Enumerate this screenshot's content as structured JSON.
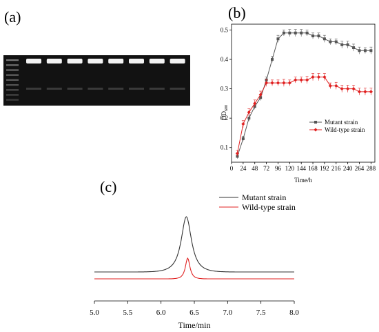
{
  "labels": {
    "a": "(a)",
    "b": "(b)",
    "c": "(c)"
  },
  "colors": {
    "mutant": "#555555",
    "wild": "#e02020",
    "gel_bg": "#121212",
    "band": "#f2f2f2"
  },
  "gel": {
    "lanes": 8,
    "ladder_bands": 9
  },
  "chart_data": [
    {
      "panel": "b",
      "type": "line",
      "ylabel_main": "OD",
      "ylabel_sub": "600",
      "xlabel": "Time/h",
      "xlim": [
        0,
        296
      ],
      "ylim": [
        0.05,
        0.52
      ],
      "xticks": [
        0,
        24,
        48,
        72,
        96,
        120,
        144,
        168,
        192,
        216,
        240,
        264,
        288
      ],
      "yticks": [
        0.1,
        0.2,
        0.3,
        0.4,
        0.5
      ],
      "legend_position": "bottom-right",
      "series": [
        {
          "name": "Mutant strain",
          "color": "#555555",
          "marker": "square",
          "x": [
            12,
            24,
            36,
            48,
            60,
            72,
            84,
            96,
            108,
            120,
            132,
            144,
            156,
            168,
            180,
            192,
            204,
            216,
            228,
            240,
            252,
            264,
            276,
            288
          ],
          "y": [
            0.07,
            0.13,
            0.2,
            0.24,
            0.27,
            0.33,
            0.4,
            0.47,
            0.49,
            0.49,
            0.49,
            0.49,
            0.49,
            0.48,
            0.48,
            0.47,
            0.46,
            0.46,
            0.45,
            0.45,
            0.44,
            0.43,
            0.43,
            0.43
          ],
          "err": [
            0.008,
            0.008,
            0.01,
            0.01,
            0.01,
            0.01,
            0.01,
            0.012,
            0.01,
            0.012,
            0.012,
            0.012,
            0.01,
            0.01,
            0.01,
            0.012,
            0.01,
            0.01,
            0.012,
            0.012,
            0.012,
            0.012,
            0.01,
            0.012
          ]
        },
        {
          "name": "Wild-type strain",
          "color": "#e02020",
          "marker": "diamond",
          "x": [
            12,
            24,
            36,
            48,
            60,
            72,
            84,
            96,
            108,
            120,
            132,
            144,
            156,
            168,
            180,
            192,
            204,
            216,
            228,
            240,
            252,
            264,
            276,
            288
          ],
          "y": [
            0.08,
            0.18,
            0.22,
            0.25,
            0.28,
            0.32,
            0.32,
            0.32,
            0.32,
            0.32,
            0.33,
            0.33,
            0.33,
            0.34,
            0.34,
            0.34,
            0.31,
            0.31,
            0.3,
            0.3,
            0.3,
            0.29,
            0.29,
            0.29
          ],
          "err": [
            0.01,
            0.012,
            0.012,
            0.012,
            0.012,
            0.012,
            0.01,
            0.01,
            0.012,
            0.01,
            0.01,
            0.01,
            0.012,
            0.012,
            0.012,
            0.012,
            0.01,
            0.012,
            0.012,
            0.012,
            0.012,
            0.012,
            0.012,
            0.012
          ]
        }
      ]
    },
    {
      "panel": "c",
      "type": "line",
      "xlabel": "Time/min",
      "xlim": [
        5.0,
        8.0
      ],
      "xticks": [
        "5.0",
        "5.5",
        "6.0",
        "6.5",
        "7.0",
        "7.5",
        "8.0"
      ],
      "yaxis_shown": false,
      "legend_position": "top-right",
      "series": [
        {
          "name": "Mutant strain",
          "color": "#333333",
          "baseline": 0.1,
          "peak_center": 6.38,
          "peak_height": 0.8,
          "peak_width": 0.09
        },
        {
          "name": "Wild-type strain",
          "color": "#e02020",
          "baseline": 0.0,
          "peak_center": 6.4,
          "peak_height": 0.3,
          "peak_width": 0.04
        }
      ]
    }
  ]
}
